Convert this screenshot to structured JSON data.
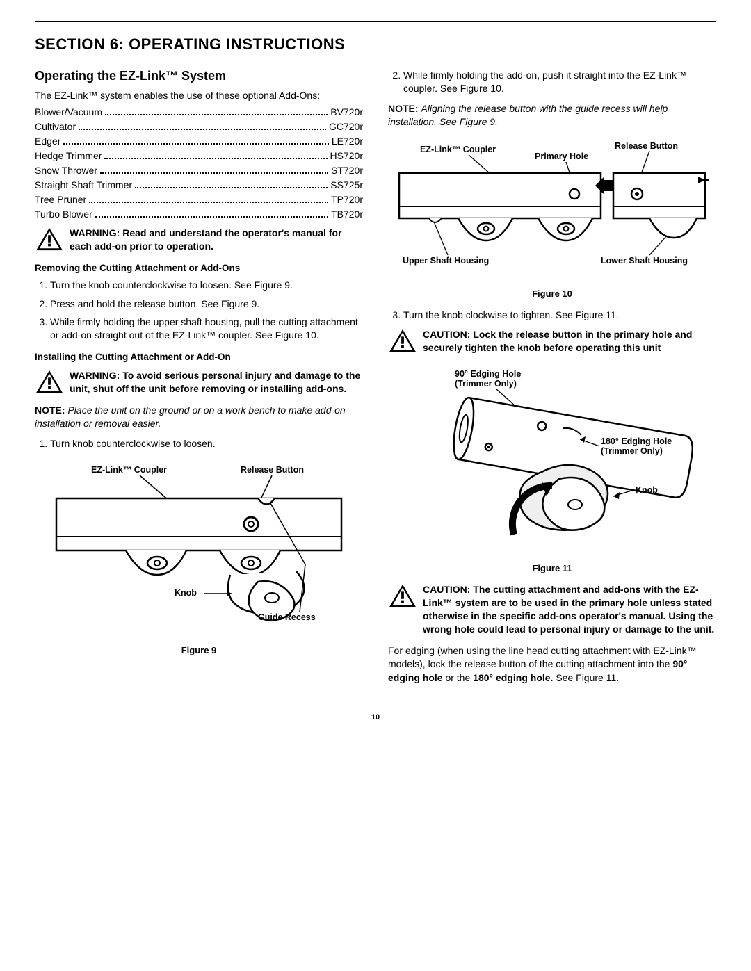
{
  "page_number": "10",
  "section_title": "SECTION 6: OPERATING INSTRUCTIONS",
  "left": {
    "heading": "Operating the EZ-Link™ System",
    "intro": "The EZ-Link™ system enables the use of these optional Add-Ons:",
    "addons": [
      {
        "name": "Blower/Vacuum",
        "code": "BV720r"
      },
      {
        "name": "Cultivator",
        "code": "GC720r"
      },
      {
        "name": "Edger",
        "code": "LE720r"
      },
      {
        "name": "Hedge Trimmer",
        "code": "HS720r"
      },
      {
        "name": "Snow Thrower",
        "code": "ST720r"
      },
      {
        "name": "Straight Shaft Trimmer",
        "code": "SS725r"
      },
      {
        "name": "Tree Pruner",
        "code": "TP720r"
      },
      {
        "name": "Turbo Blower",
        "code": "TB720r"
      }
    ],
    "warning1": "WARNING: Read and understand the operator's manual for each add-on prior to operation.",
    "sub1_title": "Removing the Cutting Attachment or Add-Ons",
    "sub1_steps": [
      "Turn the knob counterclockwise to loosen. See Figure 9.",
      "Press and hold the release button. See Figure 9.",
      "While firmly holding the upper shaft housing, pull the cutting attachment or add-on straight out of the EZ-Link™ coupler. See Figure 10."
    ],
    "sub2_title": "Installing the Cutting Attachment or Add-On",
    "warning2": "WARNING: To avoid serious personal injury and damage to the unit, shut off the unit before removing or installing add-ons.",
    "note1_label": "NOTE:",
    "note1_text": "Place the unit on the ground or on a work bench to make add-on installation or removal easier.",
    "sub2_step1": "Turn knob counterclockwise to loosen.",
    "fig9": {
      "caption": "Figure 9",
      "labels": {
        "coupler": "EZ-Link™ Coupler",
        "release": "Release Button",
        "knob": "Knob",
        "guide": "Guide Recess"
      }
    }
  },
  "right": {
    "step2": "While firmly holding the add-on, push it straight into the EZ-Link™ coupler. See Figure 10.",
    "note2_label": "NOTE:",
    "note2_text": "Aligning the release button with the guide recess will help installation. See Figure 9.",
    "fig10": {
      "caption": "Figure 10",
      "labels": {
        "coupler": "EZ-Link™ Coupler",
        "release": "Release Button",
        "primary": "Primary Hole",
        "upper": "Upper Shaft Housing",
        "lower": "Lower Shaft Housing"
      }
    },
    "step3": "Turn the knob clockwise to tighten. See Figure 11.",
    "caution1": "CAUTION: Lock the release button in the primary hole and securely tighten the knob before operating this unit",
    "fig11": {
      "caption": "Figure 11",
      "labels": {
        "edge90": "90° Edging Hole (Trimmer Only)",
        "edge180": "180° Edging Hole (Trimmer Only)",
        "knob": "Knob"
      }
    },
    "caution2": "CAUTION: The cutting attachment and add-ons with the EZ-Link™ system are to be used in the primary hole unless stated otherwise in the specific add-ons operator's manual. Using the wrong hole could lead to personal injury or damage to the unit.",
    "edging_para_pre": "For edging (when using the line head cutting attachment with EZ-Link™ models), lock the release button of the cutting attachment into the ",
    "edging_bold1": "90° edging hole",
    "edging_mid": " or the ",
    "edging_bold2": "180° edging hole.",
    "edging_post": " See Figure 11."
  }
}
